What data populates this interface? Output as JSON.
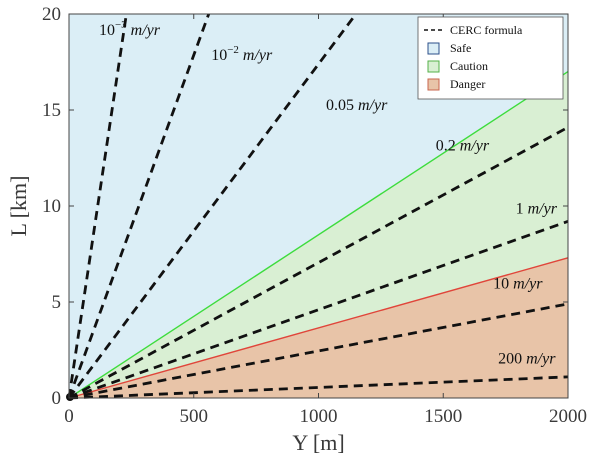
{
  "chart_data": {
    "type": "area",
    "xlabel": "Y [m]",
    "ylabel": "L [km]",
    "xlim": [
      0,
      2000
    ],
    "ylim": [
      0,
      20
    ],
    "xticks": [
      0,
      500,
      1000,
      1500,
      2000
    ],
    "yticks": [
      0,
      5,
      10,
      15,
      20
    ],
    "grid": false,
    "legend_position": "top-right",
    "legend": [
      {
        "label": "CERC formula",
        "style": "dashed-line",
        "color": "#111111"
      },
      {
        "label": "Safe",
        "style": "patch",
        "color": "#dbeef6",
        "edge": "#2b4f8a"
      },
      {
        "label": "Caution",
        "style": "patch",
        "color": "#d9efd3",
        "edge": "#55b04a"
      },
      {
        "label": "Danger",
        "style": "patch",
        "color": "#e8c4a8",
        "edge": "#c8664e"
      }
    ],
    "regions": [
      {
        "name": "Safe",
        "color": "#dbeef6",
        "lower_boundary": "green line",
        "upper_boundary": "top of axes"
      },
      {
        "name": "Caution",
        "color": "#d9efd3",
        "lower_boundary": "red line",
        "upper_boundary": "green line"
      },
      {
        "name": "Danger",
        "color": "#e8c4a8",
        "lower_boundary": "x-axis",
        "upper_boundary": "red line"
      }
    ],
    "boundaries": [
      {
        "color": "#3ddc3d",
        "x": [
          0,
          2000
        ],
        "y": [
          0,
          17.0
        ]
      },
      {
        "color": "#e0453a",
        "x": [
          0,
          2000
        ],
        "y": [
          0,
          7.3
        ]
      }
    ],
    "series": [
      {
        "label_parts": [
          "10",
          "−3",
          " m/yr"
        ],
        "x": [
          0,
          230
        ],
        "y": [
          0,
          20
        ]
      },
      {
        "label_parts": [
          "10",
          "−2",
          " m/yr"
        ],
        "x": [
          0,
          560
        ],
        "y": [
          0,
          20
        ]
      },
      {
        "label_parts": [
          "0.05 m/yr"
        ],
        "x": [
          0,
          1150
        ],
        "y": [
          0,
          20
        ]
      },
      {
        "label_parts": [
          "0.2 m/yr"
        ],
        "x": [
          0,
          2000
        ],
        "y": [
          0,
          14.1
        ]
      },
      {
        "label_parts": [
          "1 m/yr"
        ],
        "x": [
          0,
          2000
        ],
        "y": [
          0,
          9.2
        ]
      },
      {
        "label_parts": [
          "10 m/yr"
        ],
        "x": [
          0,
          2000
        ],
        "y": [
          0,
          4.9
        ]
      },
      {
        "label_parts": [
          "200 m/yr"
        ],
        "x": [
          0,
          2000
        ],
        "y": [
          0,
          1.1
        ]
      }
    ],
    "series_label_positions": [
      {
        "x": 120,
        "y": 18.9
      },
      {
        "x": 570,
        "y": 17.6
      },
      {
        "x": 1030,
        "y": 15.0
      },
      {
        "x": 1470,
        "y": 12.9
      },
      {
        "x": 1790,
        "y": 9.6
      },
      {
        "x": 1700,
        "y": 5.7
      },
      {
        "x": 1720,
        "y": 1.8
      }
    ]
  }
}
